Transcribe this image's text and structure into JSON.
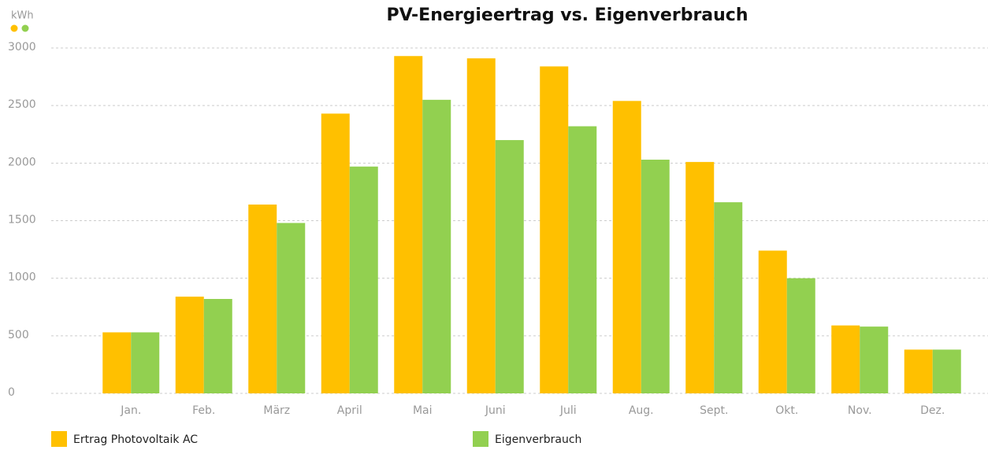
{
  "chart_data": {
    "type": "bar",
    "title": "PV-Energieertrag vs. Eigenverbrauch",
    "y_label": "kWh",
    "categories": [
      "Jan.",
      "Feb.",
      "März",
      "April",
      "Mai",
      "Juni",
      "Juli",
      "Aug.",
      "Sept.",
      "Okt.",
      "Nov.",
      "Dez."
    ],
    "series": [
      {
        "name": "Ertrag Photovoltaik AC",
        "color": "#ffc000",
        "values": [
          530,
          840,
          1640,
          2430,
          2930,
          2910,
          2840,
          2540,
          2010,
          1240,
          590,
          380
        ]
      },
      {
        "name": "Eigenverbrauch",
        "color": "#92d050",
        "values": [
          530,
          820,
          1480,
          1970,
          2550,
          2200,
          2320,
          2030,
          1660,
          1000,
          580,
          380
        ]
      }
    ],
    "ylim": [
      0,
      3000
    ],
    "yticks": [
      0,
      500,
      1000,
      1500,
      2000,
      2500,
      3000
    ],
    "grid": true
  }
}
